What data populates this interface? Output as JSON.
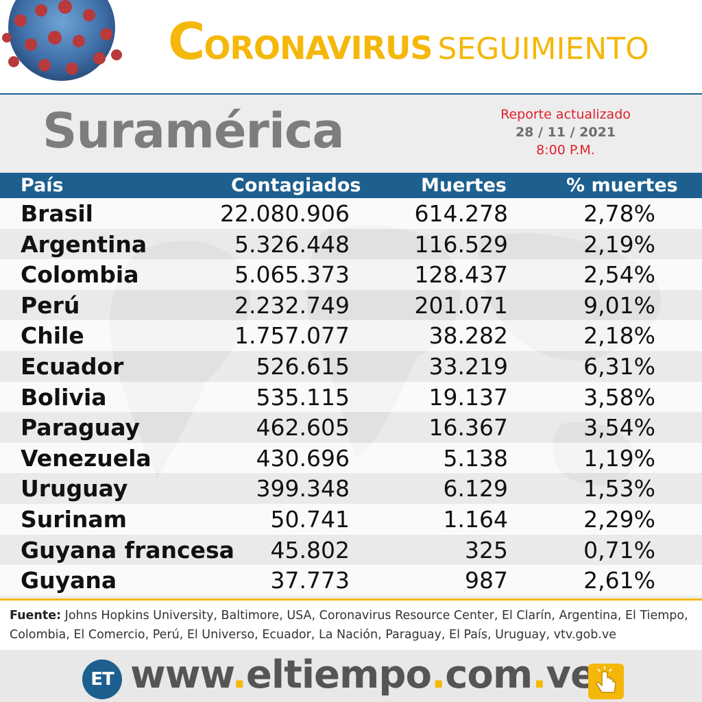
{
  "header": {
    "title_initial": "C",
    "title_rest": "ORONAVIRUS",
    "title_sub": "SEGUIMIENTO"
  },
  "region": "Suramérica",
  "report": {
    "line1": "Reporte actualizado",
    "date": "28 / 11 / 2021",
    "time": "8:00 P.M."
  },
  "table": {
    "columns": [
      "País",
      "Contagiados",
      "Muertes",
      "% muertes"
    ],
    "rows": [
      {
        "pais": "Brasil",
        "contagiados": "22.080.906",
        "muertes": "614.278",
        "pct": "2,78%"
      },
      {
        "pais": "Argentina",
        "contagiados": "5.326.448",
        "muertes": "116.529",
        "pct": "2,19%"
      },
      {
        "pais": "Colombia",
        "contagiados": "5.065.373",
        "muertes": "128.437",
        "pct": "2,54%"
      },
      {
        "pais": "Perú",
        "contagiados": "2.232.749",
        "muertes": "201.071",
        "pct": "9,01%"
      },
      {
        "pais": "Chile",
        "contagiados": "1.757.077",
        "muertes": "38.282",
        "pct": "2,18%"
      },
      {
        "pais": "Ecuador",
        "contagiados": "526.615",
        "muertes": "33.219",
        "pct": "6,31%"
      },
      {
        "pais": "Bolivia",
        "contagiados": "535.115",
        "muertes": "19.137",
        "pct": "3,58%"
      },
      {
        "pais": "Paraguay",
        "contagiados": "462.605",
        "muertes": "16.367",
        "pct": "3,54%"
      },
      {
        "pais": "Venezuela",
        "contagiados": "430.696",
        "muertes": "5.138",
        "pct": "1,19%"
      },
      {
        "pais": "Uruguay",
        "contagiados": "399.348",
        "muertes": "6.129",
        "pct": "1,53%"
      },
      {
        "pais": "Surinam",
        "contagiados": "50.741",
        "muertes": "1.164",
        "pct": "2,29%"
      },
      {
        "pais": "Guyana francesa",
        "contagiados": "45.802",
        "muertes": "325",
        "pct": "0,71%"
      },
      {
        "pais": "Guyana",
        "contagiados": "37.773",
        "muertes": "987",
        "pct": "2,61%"
      }
    ]
  },
  "source": {
    "label": "Fuente:",
    "text": " Johns Hopkins University, Baltimore, USA, Coronavirus Resource Center,  El Clarín, Argentina, El Tiempo, Colombia, El Comercio, Perú, El Universo, Ecuador, La Nación, Paraguay, El País, Uruguay, vtv.gob.ve"
  },
  "footer": {
    "logo": "ET",
    "url_www": "www",
    "url_dot": ".",
    "url_name": "eltiempo",
    "url_com": "com",
    "url_ve": "ve"
  },
  "colors": {
    "accent_gold": "#f5b70a",
    "header_blue": "#1d5f8e",
    "report_red": "#e0202a",
    "region_gray": "#7d7d7d"
  },
  "icons": [
    "coronavirus-icon",
    "world-map-background",
    "et-logo-icon",
    "hand-pointer-icon"
  ]
}
